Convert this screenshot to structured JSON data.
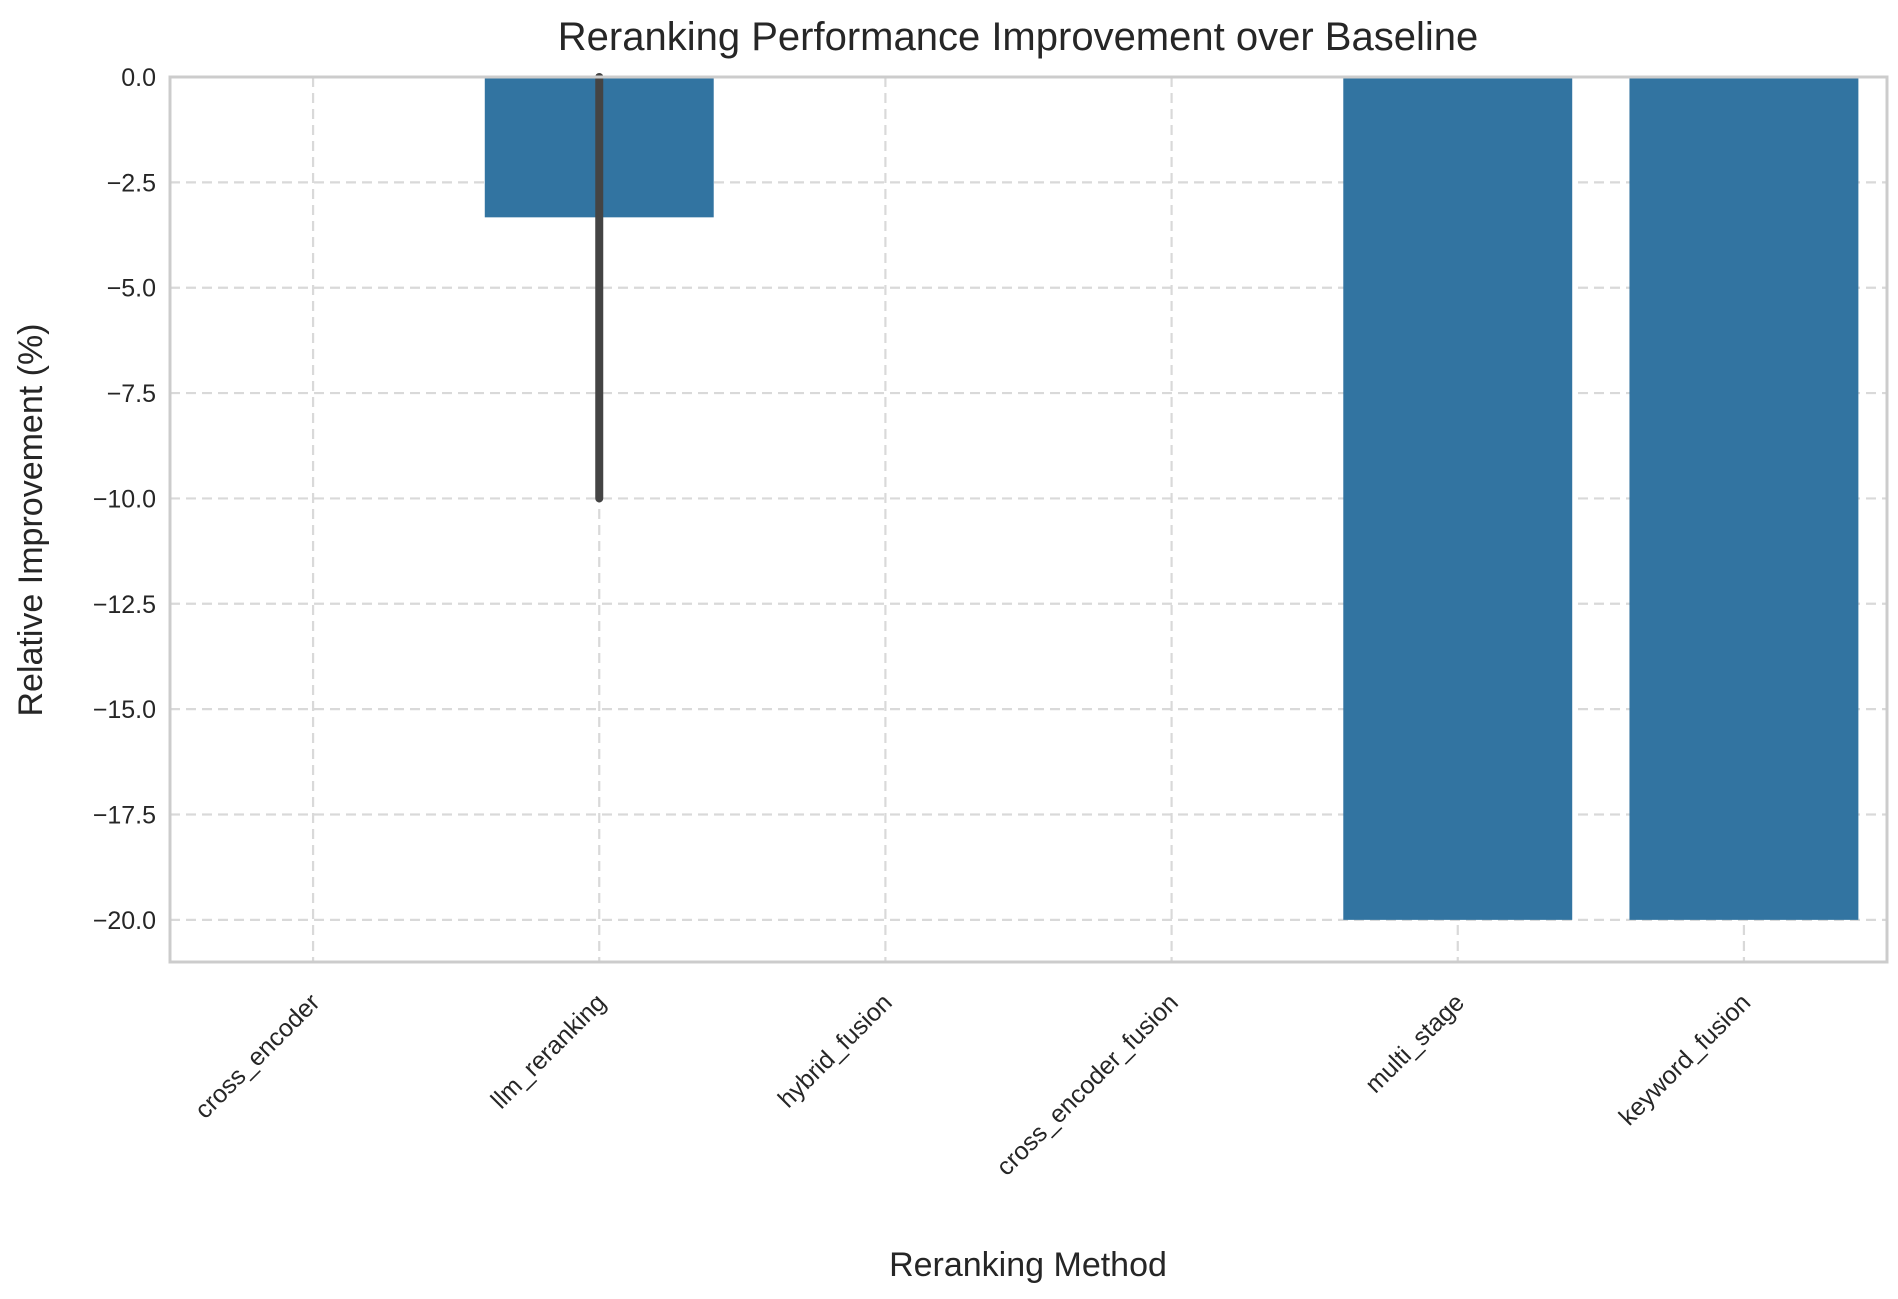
{
  "chart_data": {
    "type": "bar",
    "title": "Reranking Performance Improvement over Baseline",
    "xlabel": "Reranking Method",
    "ylabel": "Relative Improvement (%)",
    "categories": [
      "cross_encoder",
      "llm_reranking",
      "hybrid_fusion",
      "cross_encoder_fusion",
      "multi_stage",
      "keyword_fusion"
    ],
    "values": [
      0,
      -3.33,
      0,
      0,
      -20.0,
      -20.0
    ],
    "error_bars": [
      null,
      [
        -10.0,
        0.0
      ],
      null,
      null,
      null,
      null
    ],
    "ylim": [
      -21.0,
      0.0
    ],
    "yticks": [
      0.0,
      -2.5,
      -5.0,
      -7.5,
      -10.0,
      -12.5,
      -15.0,
      -17.5,
      -20.0
    ],
    "ytick_labels": [
      "0.0",
      "−2.5",
      "−5.0",
      "−7.5",
      "−10.0",
      "−12.5",
      "−15.0",
      "−17.5",
      "−20.0"
    ],
    "grid": true,
    "colors": {
      "bar": "#3274a1",
      "error_bar": "#444444",
      "grid": "#d9d9d9",
      "frame": "#cccccc"
    }
  }
}
